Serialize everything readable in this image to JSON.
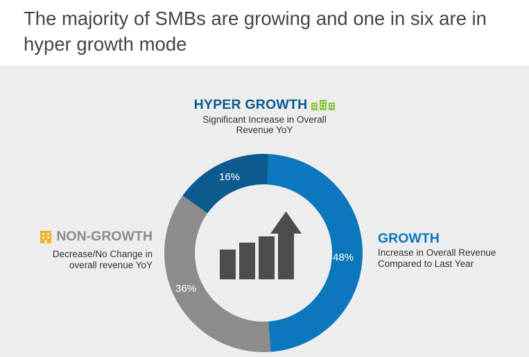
{
  "title": "The majority of SMBs are growing and one in six are in hyper growth mode",
  "colors": {
    "hyper": "#0d5a8e",
    "growth": "#0c77bc",
    "non_growth": "#8c8c8c",
    "non_growth_title": "#8c8c8c",
    "hyper_icon": "#8cc63f",
    "non_growth_icon": "#f0b323",
    "center_icon": "#4d4d4d"
  },
  "labels": {
    "hyper": {
      "title": "HYPER GROWTH",
      "subtitle": "Significant Increase in Overall Revenue YoY",
      "icon": "buildings-icon"
    },
    "growth": {
      "title": "GROWTH",
      "subtitle_line1": "Increase in Overall Revenue",
      "subtitle_line2": "Compared to Last Year"
    },
    "non_growth": {
      "title": "NON-GROWTH",
      "subtitle_line1": "Decrease/No Change in",
      "subtitle_line2": "overall revenue YoY",
      "icon": "building-icon"
    }
  },
  "center_icon": "growth-bar-chart-arrow-icon",
  "chart_data": {
    "type": "pie",
    "donut": true,
    "title": "",
    "slices": [
      {
        "label": "GROWTH",
        "value": 48,
        "display": "48%"
      },
      {
        "label": "NON-GROWTH",
        "value": 36,
        "display": "36%"
      },
      {
        "label": "HYPER GROWTH",
        "value": 16,
        "display": "16%"
      }
    ]
  }
}
